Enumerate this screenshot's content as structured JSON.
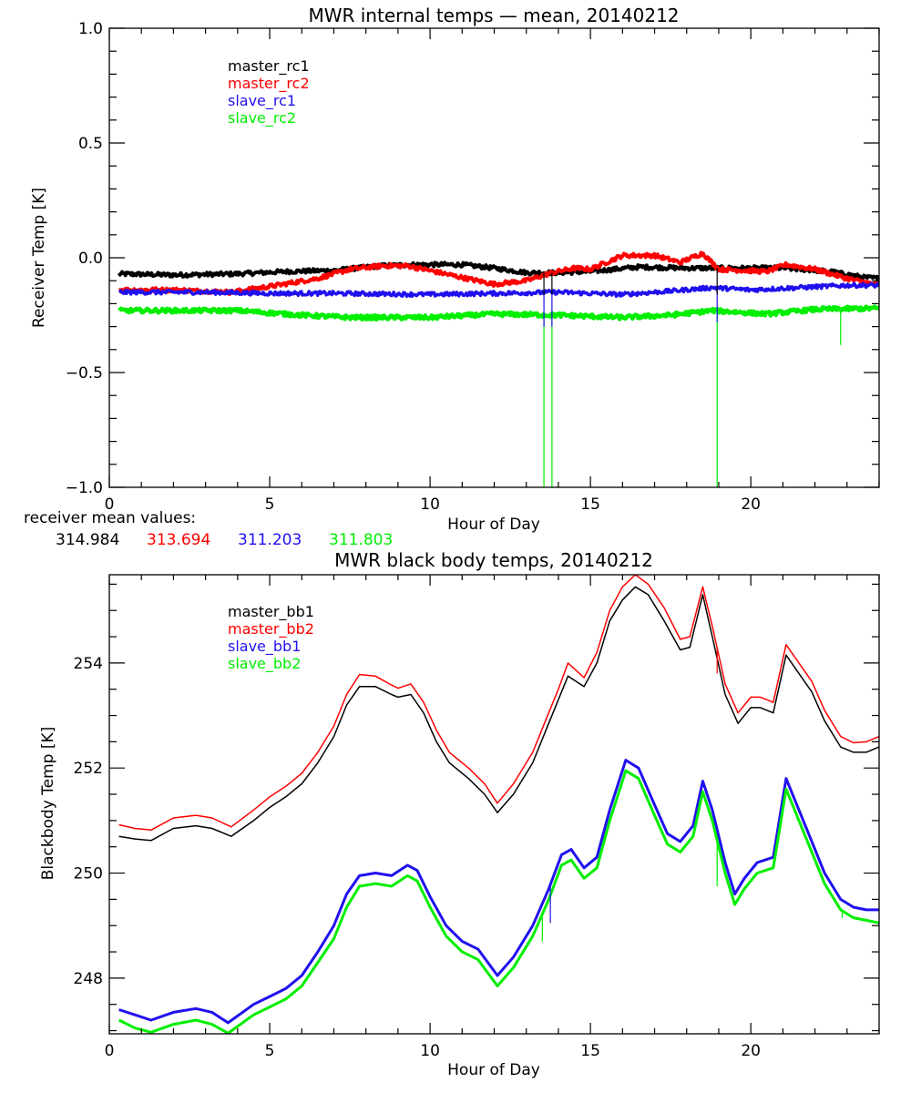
{
  "chart_data": [
    {
      "type": "line",
      "title": "MWR internal temps — mean, 20140212",
      "xlabel": "Hour of Day",
      "ylabel": "Receiver Temp [K]",
      "xlim": [
        0,
        24
      ],
      "ylim": [
        -1.0,
        1.0
      ],
      "x_ticks": [
        0,
        5,
        10,
        15,
        20
      ],
      "x_tick_labels": [
        "0",
        "5",
        "10",
        "15",
        "20"
      ],
      "x_minor_step": 1,
      "y_ticks": [
        -1.0,
        -0.5,
        0.0,
        0.5,
        1.0
      ],
      "y_tick_labels": [
        "−1.0",
        "−0.5",
        "0.0",
        "0.5",
        "1.0"
      ],
      "y_minor_step": 0.1,
      "grid": false,
      "legend_position": "top-left",
      "noisy": true,
      "series": [
        {
          "name": "master_rc1",
          "color": "#000000",
          "x": [
            0.3,
            2,
            4,
            5.5,
            7,
            8.5,
            9.5,
            11,
            12,
            13,
            14,
            15,
            16.5,
            18,
            19.5,
            21,
            22.5,
            23.5,
            24
          ],
          "y": [
            -0.07,
            -0.075,
            -0.07,
            -0.06,
            -0.055,
            -0.035,
            -0.03,
            -0.03,
            -0.045,
            -0.065,
            -0.065,
            -0.06,
            -0.04,
            -0.045,
            -0.045,
            -0.045,
            -0.06,
            -0.085,
            -0.09
          ]
        },
        {
          "name": "master_rc2",
          "color": "#ff0000",
          "x": [
            0.3,
            2,
            3,
            3.8,
            5,
            6.5,
            7.5,
            8.5,
            9.3,
            10.3,
            11.3,
            12,
            13,
            13.8,
            14.5,
            15,
            16,
            17,
            17.8,
            18.5,
            19,
            20.5,
            21.1,
            22,
            23,
            24
          ],
          "y": [
            -0.14,
            -0.14,
            -0.145,
            -0.15,
            -0.125,
            -0.09,
            -0.05,
            -0.035,
            -0.035,
            -0.065,
            -0.095,
            -0.115,
            -0.1,
            -0.065,
            -0.045,
            -0.05,
            0.01,
            0.01,
            -0.02,
            0.02,
            -0.05,
            -0.06,
            -0.03,
            -0.05,
            -0.09,
            -0.12
          ]
        },
        {
          "name": "slave_rc1",
          "color": "#2010ee",
          "x": [
            0.3,
            3,
            5,
            7,
            10,
            12,
            14,
            16,
            17.5,
            18.8,
            20,
            21.5,
            23,
            24
          ],
          "y": [
            -0.15,
            -0.15,
            -0.155,
            -0.155,
            -0.16,
            -0.155,
            -0.15,
            -0.16,
            -0.145,
            -0.13,
            -0.14,
            -0.13,
            -0.12,
            -0.12
          ]
        },
        {
          "name": "slave_rc2",
          "color": "#00ee00",
          "x": [
            0.3,
            2,
            4,
            6,
            7.5,
            10,
            12,
            14,
            16,
            17.5,
            18.8,
            20.5,
            22,
            24
          ],
          "y": [
            -0.23,
            -0.23,
            -0.23,
            -0.25,
            -0.26,
            -0.26,
            -0.245,
            -0.25,
            -0.26,
            -0.25,
            -0.23,
            -0.245,
            -0.225,
            -0.22
          ]
        }
      ],
      "spikes": [
        {
          "series": "slave_rc2",
          "x": 13.55,
          "y": -1.0
        },
        {
          "series": "slave_rc2",
          "x": 13.8,
          "y": -1.0
        },
        {
          "series": "slave_rc2",
          "x": 18.95,
          "y": -1.0
        },
        {
          "series": "slave_rc2",
          "x": 22.8,
          "y": -0.38
        },
        {
          "series": "slave_rc1",
          "x": 13.55,
          "y": -0.3
        },
        {
          "series": "slave_rc1",
          "x": 13.8,
          "y": -0.3
        },
        {
          "series": "slave_rc1",
          "x": 18.95,
          "y": -0.28
        },
        {
          "series": "master_rc1",
          "x": 13.55,
          "y": -0.16
        },
        {
          "series": "master_rc1",
          "x": 13.8,
          "y": -0.16
        },
        {
          "series": "master_rc1",
          "x": 18.95,
          "y": -0.16
        }
      ],
      "annotation": {
        "label": "receiver mean values:",
        "values": [
          {
            "text": "314.984",
            "color": "#000000"
          },
          {
            "text": "313.694",
            "color": "#ff0000"
          },
          {
            "text": "311.203",
            "color": "#2010ee"
          },
          {
            "text": "311.803",
            "color": "#00ee00"
          }
        ]
      }
    },
    {
      "type": "line",
      "title": "MWR black body temps, 20140212",
      "xlabel": "Hour of Day",
      "ylabel": "Blackbody Temp [K]",
      "xlim": [
        0,
        24
      ],
      "ylim": [
        246.94,
        255.68
      ],
      "x_ticks": [
        0,
        5,
        10,
        15,
        20
      ],
      "x_tick_labels": [
        "0",
        "5",
        "10",
        "15",
        "20"
      ],
      "x_minor_step": 1,
      "y_ticks": [
        248,
        250,
        252,
        254
      ],
      "y_tick_labels": [
        "248",
        "250",
        "252",
        "254"
      ],
      "y_minor_step": 0.5,
      "grid": false,
      "legend_position": "top-left",
      "noisy": false,
      "series": [
        {
          "name": "master_bb1",
          "color": "#000000",
          "x": [
            0.3,
            0.8,
            1.3,
            2.0,
            2.7,
            3.2,
            3.8,
            4.5,
            5.0,
            5.5,
            6.0,
            6.5,
            7.0,
            7.4,
            7.8,
            8.3,
            8.8,
            9.0,
            9.4,
            9.8,
            10.2,
            10.6,
            11.2,
            11.7,
            12.1,
            12.6,
            13.2,
            13.6,
            14.0,
            14.3,
            14.8,
            15.2,
            15.6,
            16.0,
            16.4,
            16.8,
            17.3,
            17.8,
            18.1,
            18.5,
            18.8,
            19.2,
            19.6,
            20.0,
            20.3,
            20.7,
            21.1,
            21.5,
            21.9,
            22.3,
            22.8,
            23.2,
            23.6,
            24.0
          ],
          "y": [
            250.7,
            250.65,
            250.62,
            250.85,
            250.9,
            250.85,
            250.7,
            251.0,
            251.25,
            251.45,
            251.7,
            252.1,
            252.6,
            253.2,
            253.55,
            253.55,
            253.4,
            253.35,
            253.4,
            253.05,
            252.5,
            252.1,
            251.8,
            251.5,
            251.15,
            251.5,
            252.1,
            252.7,
            253.3,
            253.75,
            253.55,
            254.0,
            254.8,
            255.2,
            255.45,
            255.3,
            254.8,
            254.25,
            254.3,
            255.3,
            254.5,
            253.4,
            252.85,
            253.15,
            253.15,
            253.05,
            254.15,
            253.8,
            253.45,
            252.9,
            252.4,
            252.3,
            252.3,
            252.4
          ]
        },
        {
          "name": "master_bb2",
          "color": "#ff0000",
          "x": [
            0.3,
            0.8,
            1.3,
            2.0,
            2.7,
            3.2,
            3.8,
            4.5,
            5.0,
            5.5,
            6.0,
            6.5,
            7.0,
            7.4,
            7.8,
            8.3,
            8.8,
            9.0,
            9.4,
            9.8,
            10.2,
            10.6,
            11.2,
            11.7,
            12.1,
            12.6,
            13.2,
            13.6,
            14.0,
            14.3,
            14.8,
            15.2,
            15.6,
            16.0,
            16.4,
            16.8,
            17.3,
            17.8,
            18.1,
            18.5,
            18.8,
            19.2,
            19.6,
            20.0,
            20.3,
            20.7,
            21.1,
            21.5,
            21.9,
            22.3,
            22.8,
            23.2,
            23.6,
            24.0
          ],
          "y": [
            250.92,
            250.85,
            250.82,
            251.05,
            251.1,
            251.05,
            250.88,
            251.2,
            251.45,
            251.65,
            251.9,
            252.3,
            252.8,
            253.4,
            253.78,
            253.75,
            253.58,
            253.52,
            253.6,
            253.25,
            252.72,
            252.3,
            252.0,
            251.7,
            251.33,
            251.7,
            252.3,
            252.9,
            253.5,
            254.0,
            253.72,
            254.2,
            255.0,
            255.45,
            255.68,
            255.5,
            255.05,
            254.45,
            254.5,
            255.45,
            254.7,
            253.6,
            253.05,
            253.35,
            253.35,
            253.25,
            254.35,
            254.0,
            253.65,
            253.1,
            252.6,
            252.48,
            252.5,
            252.6
          ]
        },
        {
          "name": "slave_bb1",
          "color": "#2010ee",
          "x": [
            0.3,
            0.8,
            1.3,
            2.0,
            2.7,
            3.2,
            3.7,
            4.5,
            5.0,
            5.5,
            6.0,
            6.5,
            7.0,
            7.4,
            7.8,
            8.3,
            8.8,
            9.3,
            9.6,
            10.0,
            10.5,
            11.0,
            11.5,
            12.1,
            12.6,
            13.2,
            13.7,
            14.1,
            14.4,
            14.8,
            15.2,
            15.6,
            16.1,
            16.5,
            17.0,
            17.4,
            17.8,
            18.2,
            18.5,
            18.8,
            19.2,
            19.5,
            19.8,
            20.2,
            20.7,
            21.1,
            21.5,
            21.9,
            22.3,
            22.8,
            23.2,
            23.6,
            24.0
          ],
          "y": [
            247.4,
            247.3,
            247.2,
            247.35,
            247.42,
            247.35,
            247.15,
            247.5,
            247.65,
            247.8,
            248.05,
            248.5,
            249.0,
            249.6,
            249.95,
            250.0,
            249.95,
            250.15,
            250.05,
            249.55,
            249.0,
            248.7,
            248.55,
            248.05,
            248.4,
            249.0,
            249.7,
            250.35,
            250.45,
            250.1,
            250.3,
            251.2,
            252.15,
            252.0,
            251.3,
            250.75,
            250.6,
            250.9,
            251.75,
            251.2,
            250.2,
            249.6,
            249.9,
            250.2,
            250.3,
            251.8,
            251.2,
            250.6,
            250.0,
            249.5,
            249.35,
            249.3,
            249.3
          ]
        },
        {
          "name": "slave_bb2",
          "color": "#00ee00",
          "x": [
            0.3,
            0.8,
            1.3,
            2.0,
            2.7,
            3.2,
            3.7,
            4.5,
            5.0,
            5.5,
            6.0,
            6.5,
            7.0,
            7.4,
            7.8,
            8.3,
            8.8,
            9.3,
            9.6,
            10.0,
            10.5,
            11.0,
            11.5,
            12.1,
            12.6,
            13.2,
            13.7,
            14.1,
            14.4,
            14.8,
            15.2,
            15.6,
            16.1,
            16.5,
            17.0,
            17.4,
            17.8,
            18.2,
            18.5,
            18.8,
            19.2,
            19.5,
            19.8,
            20.2,
            20.7,
            21.1,
            21.5,
            21.9,
            22.3,
            22.8,
            23.2,
            23.6,
            24.0
          ],
          "y": [
            247.2,
            247.05,
            246.97,
            247.12,
            247.2,
            247.12,
            246.95,
            247.3,
            247.45,
            247.6,
            247.85,
            248.3,
            248.75,
            249.35,
            249.75,
            249.8,
            249.75,
            249.95,
            249.85,
            249.35,
            248.8,
            248.5,
            248.35,
            247.85,
            248.2,
            248.8,
            249.5,
            250.15,
            250.25,
            249.9,
            250.1,
            251.0,
            251.95,
            251.8,
            251.1,
            250.55,
            250.4,
            250.7,
            251.55,
            251.0,
            250.0,
            249.4,
            249.7,
            250.0,
            250.1,
            251.6,
            251.0,
            250.4,
            249.8,
            249.3,
            249.15,
            249.1,
            249.05
          ]
        }
      ],
      "spikes": [
        {
          "series": "slave_bb2",
          "x": 13.5,
          "y": 248.7
        },
        {
          "series": "slave_bb1",
          "x": 13.75,
          "y": 249.05
        },
        {
          "series": "slave_bb2",
          "x": 18.95,
          "y": 249.75
        },
        {
          "series": "master_bb2",
          "x": 18.95,
          "y": 253.8
        },
        {
          "series": "slave_bb2",
          "x": 22.85,
          "y": 249.15
        }
      ]
    }
  ]
}
